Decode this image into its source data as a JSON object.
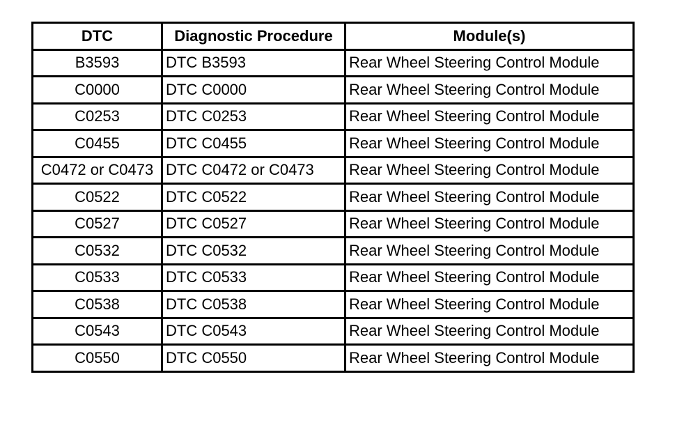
{
  "table": {
    "header": [
      "DTC",
      "Diagnostic Procedure",
      "Module(s)"
    ],
    "rows": [
      [
        "B3593",
        "DTC B3593",
        "Rear Wheel Steering Control Module"
      ],
      [
        "C0000",
        "DTC C0000",
        "Rear Wheel Steering Control Module"
      ],
      [
        "C0253",
        "DTC C0253",
        "Rear Wheel Steering Control Module"
      ],
      [
        "C0455",
        "DTC C0455",
        "Rear Wheel Steering Control Module"
      ],
      [
        "C0472 or C0473",
        "DTC C0472 or C0473",
        "Rear Wheel Steering Control Module"
      ],
      [
        "C0522",
        "DTC C0522",
        "Rear Wheel Steering Control Module"
      ],
      [
        "C0527",
        "DTC C0527",
        "Rear Wheel Steering Control Module"
      ],
      [
        "C0532",
        "DTC C0532",
        "Rear Wheel Steering Control Module"
      ],
      [
        "C0533",
        "DTC C0533",
        "Rear Wheel Steering Control Module"
      ],
      [
        "C0538",
        "DTC C0538",
        "Rear Wheel Steering Control Module"
      ],
      [
        "C0543",
        "DTC C0543",
        "Rear Wheel Steering Control Module"
      ],
      [
        "C0550",
        "DTC C0550",
        "Rear Wheel Steering Control Module"
      ]
    ]
  }
}
